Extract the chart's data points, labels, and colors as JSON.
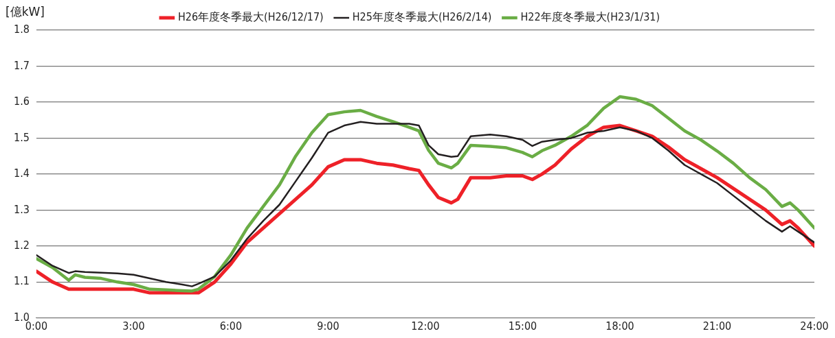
{
  "chart_data": {
    "type": "line",
    "ylabel": "[億kW]",
    "x": [
      0,
      0.5,
      1,
      1.2,
      1.5,
      2,
      2.5,
      3,
      3.5,
      4,
      4.5,
      4.8,
      5,
      5.5,
      6,
      6.5,
      7,
      7.5,
      8,
      8.5,
      9,
      9.5,
      10,
      10.5,
      11,
      11.5,
      11.8,
      12.1,
      12.4,
      12.8,
      13,
      13.4,
      14,
      14.5,
      15,
      15.3,
      15.6,
      16,
      16.5,
      17,
      17.5,
      18,
      18.5,
      19,
      19.5,
      20,
      20.5,
      21,
      21.5,
      22,
      22.5,
      23,
      23.25,
      23.5,
      24
    ],
    "series": [
      {
        "name": "H26年度冬季最大(H26/12/17)",
        "color": "#ee2128",
        "values": [
          1.13,
          1.1,
          1.08,
          1.08,
          1.08,
          1.08,
          1.08,
          1.08,
          1.07,
          1.07,
          1.07,
          1.07,
          1.07,
          1.1,
          1.15,
          1.21,
          1.25,
          1.29,
          1.33,
          1.37,
          1.42,
          1.44,
          1.44,
          1.43,
          1.425,
          1.415,
          1.41,
          1.37,
          1.335,
          1.32,
          1.33,
          1.39,
          1.39,
          1.395,
          1.395,
          1.385,
          1.4,
          1.425,
          1.47,
          1.505,
          1.53,
          1.535,
          1.52,
          1.505,
          1.475,
          1.44,
          1.415,
          1.39,
          1.36,
          1.33,
          1.3,
          1.26,
          1.27,
          1.25,
          1.2
        ]
      },
      {
        "name": "H25年度冬季最大(H26/2/14)",
        "color": "#231f20",
        "values": [
          1.175,
          1.145,
          1.125,
          1.13,
          1.128,
          1.126,
          1.124,
          1.12,
          1.11,
          1.1,
          1.093,
          1.088,
          1.095,
          1.115,
          1.16,
          1.22,
          1.27,
          1.315,
          1.38,
          1.445,
          1.515,
          1.535,
          1.545,
          1.54,
          1.54,
          1.54,
          1.535,
          1.48,
          1.455,
          1.448,
          1.45,
          1.505,
          1.51,
          1.505,
          1.495,
          1.478,
          1.49,
          1.495,
          1.5,
          1.515,
          1.52,
          1.53,
          1.52,
          1.5,
          1.465,
          1.425,
          1.4,
          1.375,
          1.34,
          1.305,
          1.27,
          1.24,
          1.255,
          1.24,
          1.21
        ]
      },
      {
        "name": "H22年度冬季最大(H23/1/31)",
        "color": "#6aad45",
        "values": [
          1.165,
          1.14,
          1.105,
          1.12,
          1.113,
          1.11,
          1.1,
          1.093,
          1.08,
          1.078,
          1.076,
          1.075,
          1.08,
          1.115,
          1.175,
          1.25,
          1.31,
          1.37,
          1.45,
          1.515,
          1.565,
          1.573,
          1.577,
          1.56,
          1.546,
          1.53,
          1.52,
          1.466,
          1.43,
          1.417,
          1.43,
          1.48,
          1.477,
          1.473,
          1.46,
          1.448,
          1.465,
          1.48,
          1.505,
          1.536,
          1.583,
          1.615,
          1.608,
          1.59,
          1.555,
          1.52,
          1.495,
          1.464,
          1.43,
          1.39,
          1.357,
          1.31,
          1.32,
          1.3,
          1.25
        ]
      }
    ],
    "xlim": [
      0,
      24
    ],
    "xticks": [
      {
        "value": 0,
        "label": "0:00"
      },
      {
        "value": 3,
        "label": "3:00"
      },
      {
        "value": 6,
        "label": "6:00"
      },
      {
        "value": 9,
        "label": "9:00"
      },
      {
        "value": 12,
        "label": "12:00"
      },
      {
        "value": 15,
        "label": "15:00"
      },
      {
        "value": 18,
        "label": "18:00"
      },
      {
        "value": 21,
        "label": "21:00"
      },
      {
        "value": 24,
        "label": "24:00"
      }
    ],
    "ylim": [
      1.0,
      1.8
    ],
    "yticks": [
      {
        "value": 1.0,
        "label": "1.0"
      },
      {
        "value": 1.1,
        "label": "1.1"
      },
      {
        "value": 1.2,
        "label": "1.2"
      },
      {
        "value": 1.3,
        "label": "1.3"
      },
      {
        "value": 1.4,
        "label": "1.4"
      },
      {
        "value": 1.5,
        "label": "1.5"
      },
      {
        "value": 1.6,
        "label": "1.6"
      },
      {
        "value": 1.7,
        "label": "1.7"
      },
      {
        "value": 1.8,
        "label": "1.8"
      }
    ],
    "grid": "y",
    "legend": "top",
    "marker": "none",
    "line_style": "solid"
  }
}
